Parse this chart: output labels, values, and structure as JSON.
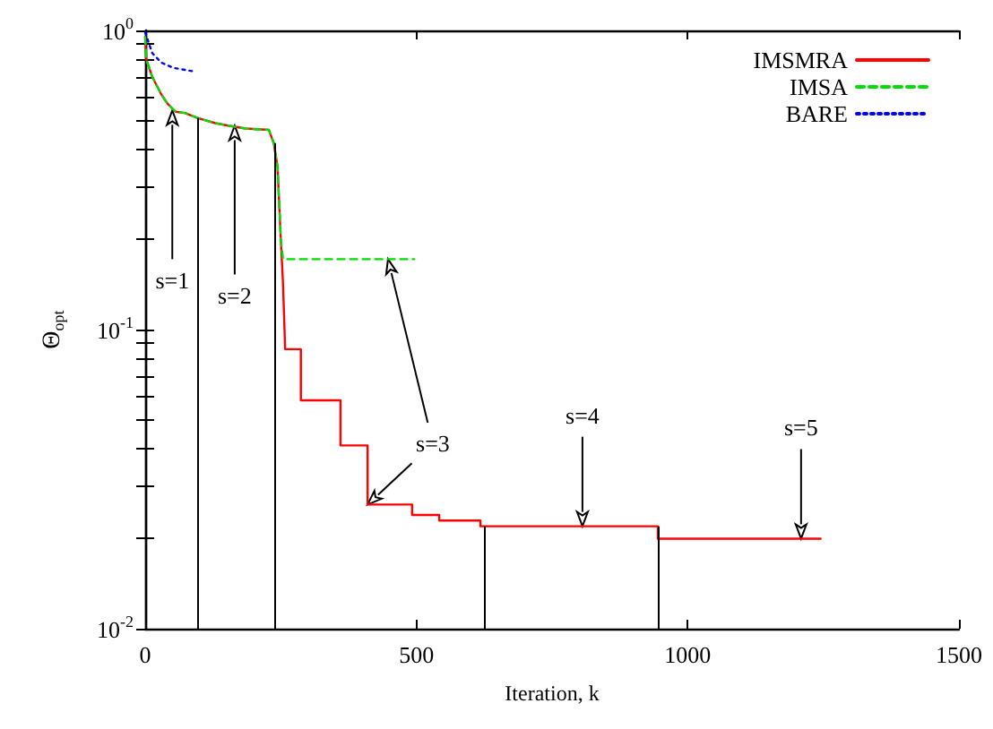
{
  "chart_data": {
    "type": "line",
    "xlabel": "Iteration, k",
    "ylabel": "Θ$_{opt}$",
    "xlim": [
      0,
      1500
    ],
    "xticks": [
      0,
      500,
      1000,
      1500
    ],
    "ylim": [
      0.01,
      1
    ],
    "log": "y",
    "yticks": [
      {
        "value": 0.01,
        "label": "10$^{-2}$"
      },
      {
        "value": 0.02,
        "label": null
      },
      {
        "value": 0.03,
        "label": null
      },
      {
        "value": 0.04,
        "label": null
      },
      {
        "value": 0.05,
        "label": null
      },
      {
        "value": 0.06,
        "label": null
      },
      {
        "value": 0.07,
        "label": null
      },
      {
        "value": 0.08,
        "label": null
      },
      {
        "value": 0.09,
        "label": null
      },
      {
        "value": 0.1,
        "label": "10$^{-1}$"
      },
      {
        "value": 0.2,
        "label": null
      },
      {
        "value": 0.3,
        "label": null
      },
      {
        "value": 0.4,
        "label": null
      },
      {
        "value": 0.5,
        "label": null
      },
      {
        "value": 0.6,
        "label": null
      },
      {
        "value": 0.7,
        "label": null
      },
      {
        "value": 0.8,
        "label": null
      },
      {
        "value": 0.9,
        "label": null
      },
      {
        "value": 1,
        "label": "10$^{0}$"
      }
    ],
    "grid": false,
    "legend": "top right",
    "marker": "none",
    "series": [
      {
        "name": "IMSMRA",
        "color": "#ff0000",
        "line_style": "solid",
        "x": [
          0,
          2,
          13,
          30,
          41,
          56,
          73,
          96,
          129,
          155,
          185,
          228,
          237,
          244,
          250,
          254,
          258,
          287,
          287,
          360,
          360,
          410,
          410,
          492,
          492,
          542,
          542,
          618,
          618,
          945,
          945,
          1245
        ],
        "values": [
          0.95,
          0.8,
          0.7,
          0.61,
          0.57,
          0.535,
          0.53,
          0.51,
          0.49,
          0.48,
          0.47,
          0.465,
          0.42,
          0.35,
          0.2,
          0.143,
          0.086,
          0.086,
          0.058,
          0.058,
          0.041,
          0.041,
          0.026,
          0.026,
          0.024,
          0.024,
          0.023,
          0.023,
          0.022,
          0.022,
          0.02,
          0.02
        ]
      },
      {
        "name": "IMSA",
        "color": "#00dd00",
        "line_style": "dashed",
        "x": [
          0,
          2,
          13,
          30,
          41,
          56,
          73,
          96,
          129,
          155,
          185,
          228,
          237,
          244,
          250,
          254,
          496
        ],
        "values": [
          0.95,
          0.8,
          0.7,
          0.61,
          0.57,
          0.535,
          0.53,
          0.51,
          0.49,
          0.48,
          0.47,
          0.465,
          0.42,
          0.35,
          0.2,
          0.172,
          0.172
        ]
      },
      {
        "name": "BARE",
        "color": "#0000ff",
        "line_style": "dotted",
        "x": [
          0,
          13,
          30,
          52,
          89
        ],
        "values": [
          0.986,
          0.84,
          0.78,
          0.75,
          0.73
        ]
      }
    ],
    "ref_lines": [
      {
        "axis": "x",
        "value": 98
      },
      {
        "axis": "x",
        "value": 239
      },
      {
        "axis": "x",
        "value": 625
      },
      {
        "axis": "x",
        "value": 945
      }
    ],
    "annotations": [
      {
        "text": "s=1",
        "x": 50,
        "y": 0.54
      },
      {
        "text": "s=2",
        "x": 165,
        "y": 0.48
      },
      {
        "text": "s=3",
        "x": 410,
        "y": 0.026
      },
      {
        "text": "s=4",
        "x": 806,
        "y": 0.022
      },
      {
        "text": "s=5",
        "x": 1209,
        "y": 0.02
      }
    ]
  }
}
